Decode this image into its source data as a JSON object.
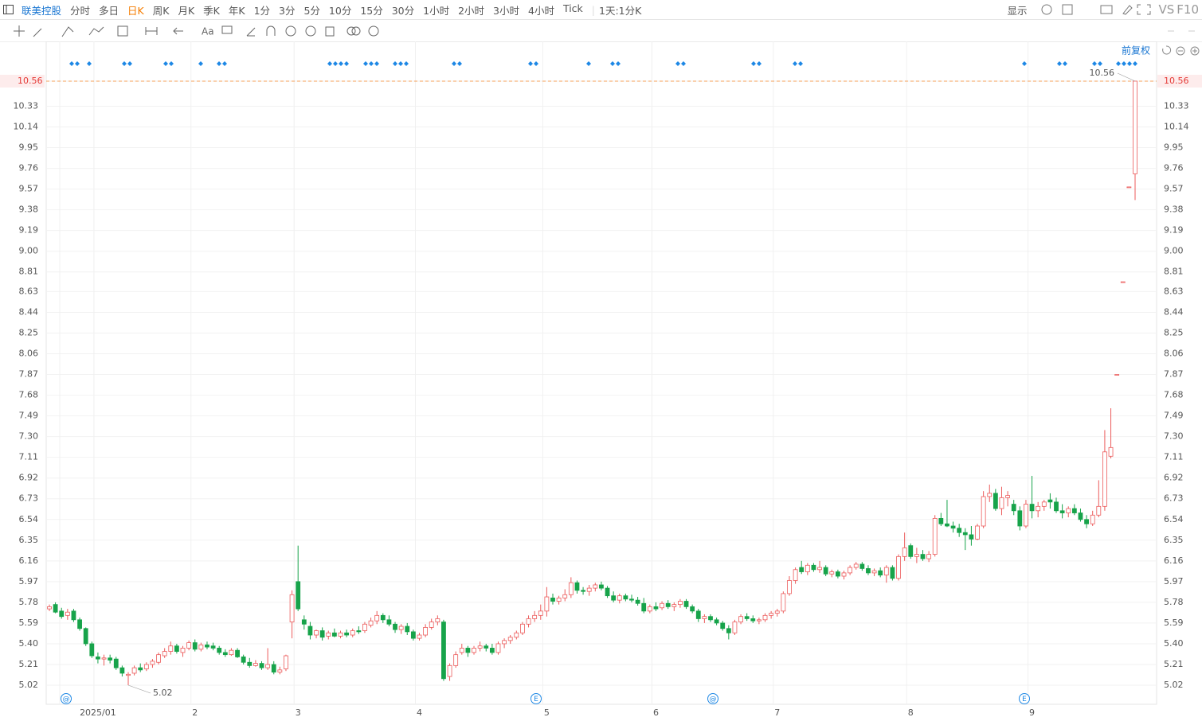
{
  "toolbar": {
    "symbol": "联美控股",
    "periods": [
      {
        "label": "分时"
      },
      {
        "label": "多日"
      },
      {
        "label": "日K",
        "active": true
      },
      {
        "label": "周K"
      },
      {
        "label": "月K"
      },
      {
        "label": "季K"
      },
      {
        "label": "年K"
      },
      {
        "label": "1分"
      },
      {
        "label": "3分"
      },
      {
        "label": "5分"
      },
      {
        "label": "10分"
      },
      {
        "label": "15分"
      },
      {
        "label": "30分"
      },
      {
        "label": "1小时"
      },
      {
        "label": "2小时"
      },
      {
        "label": "3小时"
      },
      {
        "label": "4小时"
      },
      {
        "label": "Tick"
      }
    ],
    "interval": "1天:1分K",
    "display": "显示",
    "compare": "VS",
    "f10": "F10",
    "text_tool": "Aa",
    "adjust": "前复权"
  },
  "chart_data": {
    "type": "candlestick",
    "up_color": "#ec5b5b",
    "down_color": "#17a34a",
    "grid": true,
    "ylim": [
      4.845,
      10.735
    ],
    "yticks": [
      5.02,
      5.21,
      {
        "value": 5.4,
        "label": "5.40"
      },
      5.59,
      5.78,
      5.97,
      6.16,
      6.35,
      6.54,
      6.73,
      6.92,
      7.11,
      {
        "value": 7.3,
        "label": "7.30"
      },
      7.49,
      7.68,
      7.87,
      8.06,
      8.25,
      8.44,
      8.63,
      8.81,
      {
        "value": 9,
        "label": "9.00"
      },
      9.19,
      9.38,
      9.57,
      9.76,
      9.95,
      10.14,
      10.33,
      10.56
    ],
    "last_price": 10.56,
    "max_label": 10.56,
    "min_label": 5.02,
    "events": [
      "@",
      "E",
      "@",
      "E"
    ],
    "categories": [
      null,
      null,
      null,
      null,
      null,
      null,
      null,
      null,
      "2025/01",
      null,
      null,
      null,
      null,
      null,
      null,
      null,
      null,
      null,
      null,
      null,
      null,
      null,
      null,
      null,
      "2",
      null,
      null,
      null,
      null,
      null,
      null,
      null,
      null,
      null,
      null,
      null,
      null,
      null,
      null,
      null,
      null,
      "3",
      null,
      null,
      null,
      null,
      null,
      null,
      null,
      null,
      null,
      null,
      null,
      null,
      null,
      null,
      null,
      null,
      null,
      null,
      null,
      "4",
      null,
      null,
      null,
      null,
      null,
      null,
      null,
      null,
      null,
      null,
      null,
      null,
      null,
      null,
      null,
      null,
      null,
      null,
      null,
      null,
      "5",
      null,
      null,
      null,
      null,
      null,
      null,
      null,
      null,
      null,
      null,
      null,
      null,
      null,
      null,
      null,
      null,
      null,
      "6",
      null,
      null,
      null,
      null,
      null,
      null,
      null,
      null,
      null,
      null,
      null,
      null,
      null,
      null,
      null,
      null,
      null,
      null,
      null,
      "7",
      null,
      null,
      null,
      null,
      null,
      null,
      null,
      null,
      null,
      null,
      null,
      null,
      null,
      null,
      null,
      null,
      null,
      null,
      null,
      null,
      null,
      "8",
      null,
      null,
      null,
      null,
      null,
      null,
      null,
      null,
      null,
      null,
      null,
      null,
      null,
      null,
      null,
      null,
      null,
      null,
      null,
      "9",
      null,
      null,
      null,
      null,
      null,
      null,
      null,
      null,
      null,
      null,
      null,
      null,
      null,
      null,
      null,
      null,
      null
    ],
    "ohlc": [
      [
        5.72,
        5.76,
        5.7,
        5.74
      ],
      [
        5.76,
        5.78,
        5.68,
        5.69
      ],
      [
        5.7,
        5.73,
        5.63,
        5.65
      ],
      [
        5.66,
        5.72,
        5.62,
        5.69
      ],
      [
        5.7,
        5.72,
        5.6,
        5.62
      ],
      [
        5.62,
        5.64,
        5.52,
        5.54
      ],
      [
        5.54,
        5.55,
        5.38,
        5.4
      ],
      [
        5.4,
        5.42,
        5.27,
        5.29
      ],
      [
        5.28,
        5.32,
        5.22,
        5.26
      ],
      [
        5.26,
        5.3,
        5.2,
        5.27
      ],
      [
        5.27,
        5.3,
        5.22,
        5.25
      ],
      [
        5.26,
        5.28,
        5.16,
        5.18
      ],
      [
        5.18,
        5.2,
        5.1,
        5.13
      ],
      [
        5.11,
        5.14,
        5.02,
        5.12
      ],
      [
        5.13,
        5.2,
        5.11,
        5.18
      ],
      [
        5.18,
        5.22,
        5.14,
        5.16
      ],
      [
        5.17,
        5.23,
        5.15,
        5.21
      ],
      [
        5.21,
        5.26,
        5.18,
        5.24
      ],
      [
        5.23,
        5.32,
        5.21,
        5.3
      ],
      [
        5.29,
        5.36,
        5.27,
        5.33
      ],
      [
        5.33,
        5.42,
        5.3,
        5.38
      ],
      [
        5.38,
        5.4,
        5.31,
        5.33
      ],
      [
        5.32,
        5.38,
        5.28,
        5.36
      ],
      [
        5.36,
        5.43,
        5.34,
        5.41
      ],
      [
        5.41,
        5.44,
        5.33,
        5.35
      ],
      [
        5.35,
        5.41,
        5.33,
        5.39
      ],
      [
        5.39,
        5.42,
        5.35,
        5.37
      ],
      [
        5.38,
        5.41,
        5.34,
        5.36
      ],
      [
        5.36,
        5.38,
        5.3,
        5.32
      ],
      [
        5.32,
        5.35,
        5.28,
        5.3
      ],
      [
        5.3,
        5.36,
        5.29,
        5.34
      ],
      [
        5.34,
        5.36,
        5.27,
        5.28
      ],
      [
        5.28,
        5.3,
        5.21,
        5.23
      ],
      [
        5.23,
        5.27,
        5.18,
        5.2
      ],
      [
        5.2,
        5.25,
        5.19,
        5.22
      ],
      [
        5.22,
        5.24,
        5.16,
        5.18
      ],
      [
        5.18,
        5.36,
        5.16,
        5.21
      ],
      [
        5.21,
        5.24,
        5.12,
        5.14
      ],
      [
        5.14,
        5.19,
        5.12,
        5.16
      ],
      [
        5.17,
        5.3,
        5.15,
        5.29
      ],
      [
        5.6,
        5.89,
        5.45,
        5.85
      ],
      [
        5.97,
        6.3,
        5.7,
        5.72
      ],
      [
        5.62,
        5.66,
        5.53,
        5.58
      ],
      [
        5.56,
        5.6,
        5.44,
        5.48
      ],
      [
        5.48,
        5.53,
        5.45,
        5.52
      ],
      [
        5.52,
        5.55,
        5.43,
        5.46
      ],
      [
        5.47,
        5.52,
        5.44,
        5.5
      ],
      [
        5.5,
        5.54,
        5.46,
        5.47
      ],
      [
        5.47,
        5.52,
        5.45,
        5.5
      ],
      [
        5.5,
        5.53,
        5.46,
        5.48
      ],
      [
        5.48,
        5.54,
        5.46,
        5.52
      ],
      [
        5.52,
        5.56,
        5.49,
        5.51
      ],
      [
        5.52,
        5.6,
        5.5,
        5.58
      ],
      [
        5.57,
        5.64,
        5.55,
        5.61
      ],
      [
        5.61,
        5.7,
        5.58,
        5.66
      ],
      [
        5.66,
        5.68,
        5.59,
        5.62
      ],
      [
        5.62,
        5.66,
        5.56,
        5.58
      ],
      [
        5.58,
        5.6,
        5.5,
        5.53
      ],
      [
        5.53,
        5.58,
        5.49,
        5.56
      ],
      [
        5.56,
        5.59,
        5.48,
        5.51
      ],
      [
        5.51,
        5.53,
        5.43,
        5.45
      ],
      [
        5.45,
        5.5,
        5.43,
        5.48
      ],
      [
        5.48,
        5.58,
        5.46,
        5.55
      ],
      [
        5.55,
        5.63,
        5.53,
        5.6
      ],
      [
        5.6,
        5.66,
        5.57,
        5.63
      ],
      [
        5.6,
        5.62,
        5.06,
        5.08
      ],
      [
        5.1,
        5.22,
        5.06,
        5.2
      ],
      [
        5.2,
        5.33,
        5.18,
        5.3
      ],
      [
        5.32,
        5.4,
        5.3,
        5.36
      ],
      [
        5.36,
        5.38,
        5.28,
        5.32
      ],
      [
        5.32,
        5.38,
        5.3,
        5.36
      ],
      [
        5.36,
        5.42,
        5.33,
        5.38
      ],
      [
        5.38,
        5.4,
        5.33,
        5.36
      ],
      [
        5.36,
        5.4,
        5.3,
        5.32
      ],
      [
        5.32,
        5.42,
        5.3,
        5.4
      ],
      [
        5.4,
        5.45,
        5.36,
        5.43
      ],
      [
        5.43,
        5.48,
        5.4,
        5.46
      ],
      [
        5.46,
        5.52,
        5.44,
        5.5
      ],
      [
        5.5,
        5.6,
        5.48,
        5.58
      ],
      [
        5.58,
        5.66,
        5.55,
        5.63
      ],
      [
        5.63,
        5.7,
        5.6,
        5.66
      ],
      [
        5.66,
        5.76,
        5.62,
        5.7
      ],
      [
        5.7,
        5.92,
        5.65,
        5.83
      ],
      [
        5.82,
        5.86,
        5.76,
        5.79
      ],
      [
        5.79,
        5.84,
        5.76,
        5.82
      ],
      [
        5.82,
        5.9,
        5.79,
        5.85
      ],
      [
        5.85,
        6.01,
        5.82,
        5.96
      ],
      [
        5.96,
        5.98,
        5.86,
        5.89
      ],
      [
        5.89,
        5.92,
        5.85,
        5.88
      ],
      [
        5.88,
        5.94,
        5.84,
        5.91
      ],
      [
        5.91,
        5.96,
        5.88,
        5.94
      ],
      [
        5.94,
        5.97,
        5.89,
        5.91
      ],
      [
        5.91,
        5.93,
        5.82,
        5.84
      ],
      [
        5.84,
        5.88,
        5.78,
        5.8
      ],
      [
        5.8,
        5.86,
        5.77,
        5.84
      ],
      [
        5.84,
        5.86,
        5.79,
        5.81
      ],
      [
        5.81,
        5.85,
        5.78,
        5.8
      ],
      [
        5.8,
        5.83,
        5.75,
        5.77
      ],
      [
        5.77,
        5.82,
        5.68,
        5.7
      ],
      [
        5.7,
        5.76,
        5.68,
        5.74
      ],
      [
        5.74,
        5.78,
        5.7,
        5.72
      ],
      [
        5.73,
        5.79,
        5.71,
        5.77
      ],
      [
        5.77,
        5.8,
        5.72,
        5.74
      ],
      [
        5.74,
        5.78,
        5.7,
        5.76
      ],
      [
        5.76,
        5.81,
        5.73,
        5.79
      ],
      [
        5.79,
        5.81,
        5.72,
        5.74
      ],
      [
        5.74,
        5.76,
        5.68,
        5.7
      ],
      [
        5.7,
        5.72,
        5.6,
        5.63
      ],
      [
        5.63,
        5.67,
        5.59,
        5.65
      ],
      [
        5.65,
        5.67,
        5.6,
        5.62
      ],
      [
        5.62,
        5.64,
        5.57,
        5.59
      ],
      [
        5.59,
        5.61,
        5.52,
        5.54
      ],
      [
        5.54,
        5.57,
        5.44,
        5.5
      ],
      [
        5.5,
        5.62,
        5.48,
        5.6
      ],
      [
        5.6,
        5.67,
        5.58,
        5.65
      ],
      [
        5.65,
        5.68,
        5.61,
        5.63
      ],
      [
        5.63,
        5.66,
        5.59,
        5.61
      ],
      [
        5.61,
        5.64,
        5.58,
        5.62
      ],
      [
        5.62,
        5.68,
        5.6,
        5.66
      ],
      [
        5.66,
        5.7,
        5.63,
        5.68
      ],
      [
        5.68,
        5.72,
        5.65,
        5.7
      ],
      [
        5.7,
        5.88,
        5.68,
        5.86
      ],
      [
        5.86,
        6.02,
        5.84,
        5.98
      ],
      [
        5.98,
        6.1,
        5.95,
        6.08
      ],
      [
        6.1,
        6.16,
        6.04,
        6.06
      ],
      [
        6.06,
        6.14,
        6.03,
        6.12
      ],
      [
        6.12,
        6.14,
        6.06,
        6.08
      ],
      [
        6.08,
        6.16,
        6.05,
        6.1
      ],
      [
        6.1,
        6.12,
        6.02,
        6.04
      ],
      [
        6.04,
        6.08,
        6.01,
        6.06
      ],
      [
        6.06,
        6.08,
        6.0,
        6.02
      ],
      [
        6.02,
        6.07,
        5.99,
        6.05
      ],
      [
        6.05,
        6.12,
        6.03,
        6.1
      ],
      [
        6.1,
        6.15,
        6.08,
        6.13
      ],
      [
        6.13,
        6.15,
        6.07,
        6.09
      ],
      [
        6.09,
        6.12,
        6.03,
        6.05
      ],
      [
        6.05,
        6.09,
        6.02,
        6.07
      ],
      [
        6.07,
        6.1,
        6.01,
        6.03
      ],
      [
        6.03,
        6.12,
        5.96,
        6.1
      ],
      [
        6.1,
        6.12,
        5.98,
        6.0
      ],
      [
        6.0,
        6.22,
        5.98,
        6.2
      ],
      [
        6.2,
        6.42,
        6.16,
        6.28
      ],
      [
        6.3,
        6.32,
        6.18,
        6.2
      ],
      [
        6.2,
        6.28,
        6.14,
        6.22
      ],
      [
        6.22,
        6.26,
        6.16,
        6.18
      ],
      [
        6.18,
        6.25,
        6.15,
        6.22
      ],
      [
        6.22,
        6.58,
        6.2,
        6.55
      ],
      [
        6.55,
        6.6,
        6.48,
        6.5
      ],
      [
        6.5,
        6.72,
        6.47,
        6.48
      ],
      [
        6.48,
        6.52,
        6.42,
        6.46
      ],
      [
        6.46,
        6.5,
        6.38,
        6.42
      ],
      [
        6.42,
        6.46,
        6.26,
        6.4
      ],
      [
        6.4,
        6.48,
        6.3,
        6.36
      ],
      [
        6.36,
        6.5,
        6.35,
        6.48
      ],
      [
        6.48,
        6.8,
        6.46,
        6.75
      ],
      [
        6.75,
        6.86,
        6.7,
        6.78
      ],
      [
        6.78,
        6.82,
        6.62,
        6.64
      ],
      [
        6.64,
        6.84,
        6.58,
        6.74
      ],
      [
        6.74,
        6.8,
        6.66,
        6.76
      ],
      [
        6.68,
        6.72,
        6.58,
        6.62
      ],
      [
        6.62,
        6.66,
        6.44,
        6.48
      ],
      [
        6.48,
        6.72,
        6.46,
        6.68
      ],
      [
        6.68,
        6.94,
        6.55,
        6.62
      ],
      [
        6.62,
        6.7,
        6.56,
        6.66
      ],
      [
        6.66,
        6.72,
        6.62,
        6.7
      ],
      [
        6.72,
        6.78,
        6.64,
        6.7
      ],
      [
        6.7,
        6.74,
        6.6,
        6.62
      ],
      [
        6.62,
        6.68,
        6.55,
        6.6
      ],
      [
        6.6,
        6.66,
        6.56,
        6.64
      ],
      [
        6.64,
        6.68,
        6.58,
        6.6
      ],
      [
        6.6,
        6.64,
        6.52,
        6.54
      ],
      [
        6.54,
        6.58,
        6.46,
        6.5
      ],
      [
        6.5,
        6.62,
        6.48,
        6.58
      ],
      [
        6.58,
        6.9,
        6.56,
        6.66
      ],
      [
        6.66,
        7.36,
        6.62,
        7.16
      ],
      [
        7.12,
        7.56,
        7.1,
        7.2
      ],
      [
        7.87,
        7.87,
        7.87,
        7.87
      ],
      [
        8.72,
        8.72,
        8.72,
        8.72
      ],
      [
        9.59,
        9.59,
        9.59,
        9.59
      ],
      [
        9.71,
        10.56,
        9.47,
        10.56
      ]
    ]
  }
}
